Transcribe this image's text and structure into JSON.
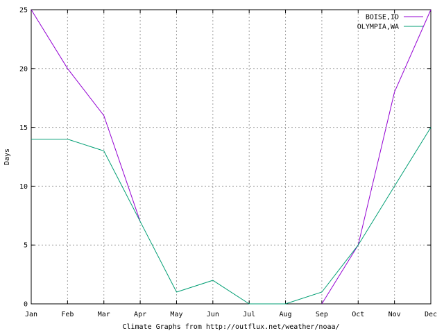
{
  "chart_data": {
    "type": "line",
    "title": "",
    "xlabel": "Climate Graphs from http://outflux.net/weather/noaa/",
    "ylabel": "Days",
    "categories": [
      "Jan",
      "Feb",
      "Mar",
      "Apr",
      "May",
      "Jun",
      "Jul",
      "Aug",
      "Sep",
      "Oct",
      "Nov",
      "Dec"
    ],
    "ylim": [
      0,
      25
    ],
    "yticks": [
      "0",
      "5",
      "10",
      "15",
      "20",
      "25"
    ],
    "grid": true,
    "legend_position": "top-right",
    "series": [
      {
        "name": "BOISE,ID",
        "color": "#9400d3",
        "values": [
          25,
          20,
          16,
          7,
          null,
          null,
          null,
          null,
          0,
          5,
          18,
          25
        ]
      },
      {
        "name": "OLYMPIA,WA",
        "color": "#009e73",
        "values": [
          14,
          14,
          13,
          7,
          1,
          2,
          0,
          0,
          1,
          5,
          10,
          15
        ]
      }
    ]
  }
}
